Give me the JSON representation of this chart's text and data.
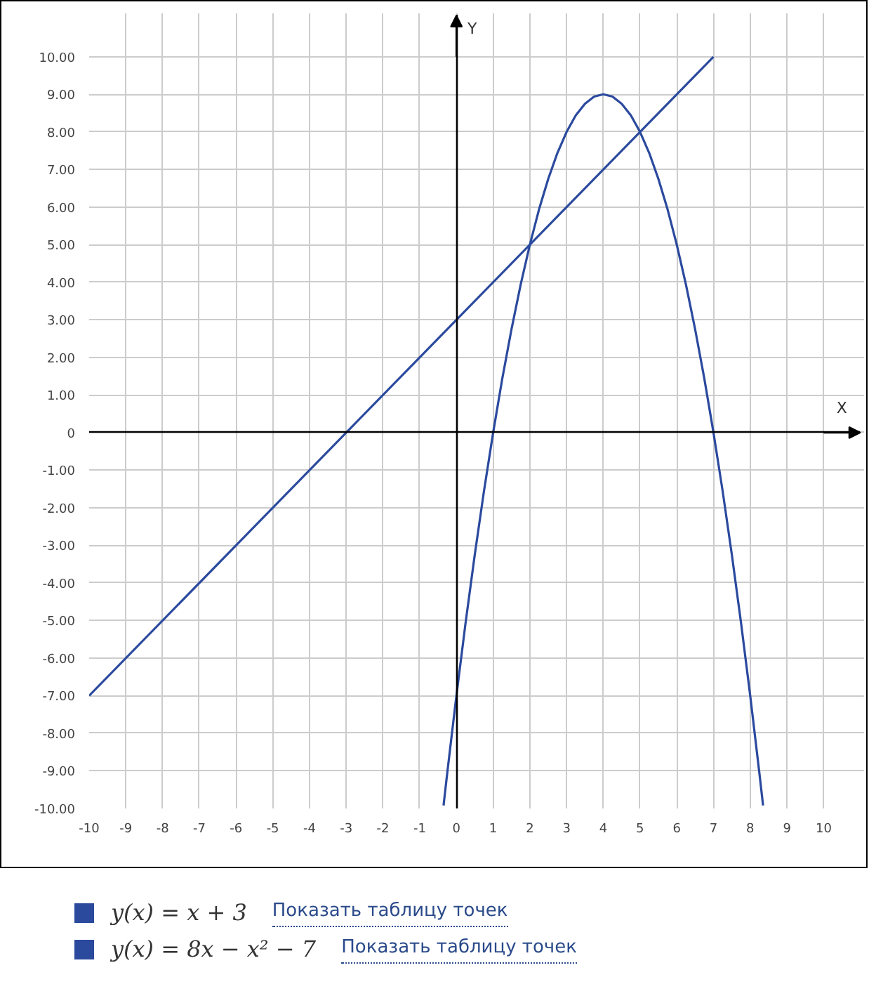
{
  "chart_data": {
    "type": "line",
    "xlabel": "X",
    "ylabel": "Y",
    "xlim": [
      -10,
      10
    ],
    "ylim": [
      -10,
      10
    ],
    "xticks": [
      -10,
      -9,
      -8,
      -7,
      -6,
      -5,
      -4,
      -3,
      -2,
      -1,
      0,
      1,
      2,
      3,
      4,
      5,
      6,
      7,
      8,
      9,
      10
    ],
    "yticks": [
      {
        "value": -10,
        "label": "-10.00"
      },
      {
        "value": -9,
        "label": "-9.00"
      },
      {
        "value": -8,
        "label": "-8.00"
      },
      {
        "value": -7,
        "label": "-7.00"
      },
      {
        "value": -6,
        "label": "-6.00"
      },
      {
        "value": -5,
        "label": "-5.00"
      },
      {
        "value": -4,
        "label": "-4.00"
      },
      {
        "value": -3,
        "label": "-3.00"
      },
      {
        "value": -2,
        "label": "-2.00"
      },
      {
        "value": -1,
        "label": "-1.00"
      },
      0,
      {
        "value": 1,
        "label": "1.00"
      },
      {
        "value": 2,
        "label": "2.00"
      },
      {
        "value": 3,
        "label": "3.00"
      },
      {
        "value": 4,
        "label": "4.00"
      },
      {
        "value": 5,
        "label": "5.00"
      },
      {
        "value": 6,
        "label": "6.00"
      },
      {
        "value": 7,
        "label": "7.00"
      },
      {
        "value": 8,
        "label": "8.00"
      },
      {
        "value": 9,
        "label": "9.00"
      },
      {
        "value": 10,
        "label": "10.00"
      }
    ],
    "grid": true,
    "legend": "bottom",
    "marker": "none",
    "line_style": "solid",
    "series": [
      {
        "name": "y(x) = x + 3",
        "color": "#2b4a9e",
        "x": [
          -10,
          7
        ],
        "values": [
          -7,
          10
        ]
      },
      {
        "name": "y(x) = 8x − x² − 7",
        "color": "#2b4a9e",
        "x": [
          -0.35,
          -0.25,
          0,
          0.25,
          0.5,
          0.75,
          1,
          1.25,
          1.5,
          1.75,
          2,
          2.25,
          2.5,
          2.75,
          3,
          3.25,
          3.5,
          3.75,
          4,
          4.25,
          4.5,
          4.75,
          5,
          5.25,
          5.5,
          5.75,
          6,
          6.25,
          6.5,
          6.75,
          7,
          7.25,
          7.5,
          7.75,
          8,
          8.25,
          8.35
        ],
        "values": [
          -9.92,
          -9.06,
          -7,
          -5.06,
          -3.25,
          -1.56,
          0,
          1.44,
          2.75,
          3.94,
          5,
          5.94,
          6.75,
          7.44,
          8,
          8.44,
          8.75,
          8.94,
          9,
          8.94,
          8.75,
          8.44,
          8,
          7.44,
          6.75,
          5.94,
          5,
          3.94,
          2.75,
          1.44,
          0,
          -1.56,
          -3.25,
          -5.06,
          -7,
          -9.06,
          -9.92
        ]
      }
    ],
    "annotations": [
      "Показать таблицу точек",
      "Показать таблицу точек"
    ]
  }
}
